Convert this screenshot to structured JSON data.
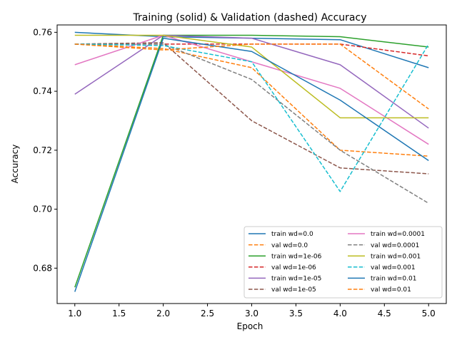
{
  "chart_data": {
    "type": "line",
    "title": "Training (solid) & Validation (dashed) Accuracy",
    "xlabel": "Epoch",
    "ylabel": "Accuracy",
    "xlim": [
      0.8,
      5.2
    ],
    "ylim": [
      0.668,
      0.7625
    ],
    "grid": false,
    "legend_position": "lower-right",
    "legend_columns": 2,
    "x": [
      1,
      2,
      3,
      4,
      5
    ],
    "x_ticks": [
      1.0,
      1.5,
      2.0,
      2.5,
      3.0,
      3.5,
      4.0,
      4.5,
      5.0
    ],
    "x_tick_labels": [
      "1.0",
      "1.5",
      "2.0",
      "2.5",
      "3.0",
      "3.5",
      "4.0",
      "4.5",
      "5.0"
    ],
    "y_ticks": [
      0.68,
      0.7,
      0.72,
      0.74,
      0.76
    ],
    "y_tick_labels": [
      "0.68",
      "0.70",
      "0.72",
      "0.74",
      "0.76"
    ],
    "series": [
      {
        "name": "train wd=0.0",
        "style": "solid",
        "color": "#1f77b4",
        "values": [
          0.76,
          0.7585,
          0.758,
          0.7575,
          0.748
        ]
      },
      {
        "name": "val wd=0.0",
        "style": "dashed",
        "color": "#ff7f0e",
        "values": [
          0.756,
          0.7545,
          0.748,
          0.72,
          0.718
        ]
      },
      {
        "name": "train wd=1e-06",
        "style": "solid",
        "color": "#2ca02c",
        "values": [
          0.6735,
          0.759,
          0.759,
          0.7585,
          0.755
        ]
      },
      {
        "name": "val wd=1e-06",
        "style": "dashed",
        "color": "#d62728",
        "values": [
          0.756,
          0.756,
          0.756,
          0.756,
          0.752
        ]
      },
      {
        "name": "train wd=1e-05",
        "style": "solid",
        "color": "#9467bd",
        "values": [
          0.739,
          0.759,
          0.758,
          0.749,
          0.7275
        ]
      },
      {
        "name": "val wd=1e-05",
        "style": "dashed",
        "color": "#8c564b",
        "values": [
          0.756,
          0.7565,
          0.73,
          0.714,
          0.712
        ]
      },
      {
        "name": "train wd=0.0001",
        "style": "solid",
        "color": "#e377c2",
        "values": [
          0.749,
          0.759,
          0.75,
          0.741,
          0.722
        ]
      },
      {
        "name": "val wd=0.0001",
        "style": "dashed",
        "color": "#7f7f7f",
        "values": [
          0.756,
          0.756,
          0.744,
          0.72,
          0.702
        ]
      },
      {
        "name": "train wd=0.001",
        "style": "solid",
        "color": "#bcbd22",
        "values": [
          0.759,
          0.759,
          0.755,
          0.731,
          0.731
        ]
      },
      {
        "name": "val wd=0.001",
        "style": "dashed",
        "color": "#17becf",
        "values": [
          0.756,
          0.7555,
          0.75,
          0.706,
          0.756
        ]
      },
      {
        "name": "train wd=0.01",
        "style": "solid",
        "color": "#1f77b4",
        "values": [
          0.672,
          0.758,
          0.7535,
          0.737,
          0.7165
        ]
      },
      {
        "name": "val wd=0.01",
        "style": "dashed",
        "color": "#ff7f0e",
        "values": [
          0.756,
          0.754,
          0.756,
          0.756,
          0.734
        ]
      }
    ]
  }
}
